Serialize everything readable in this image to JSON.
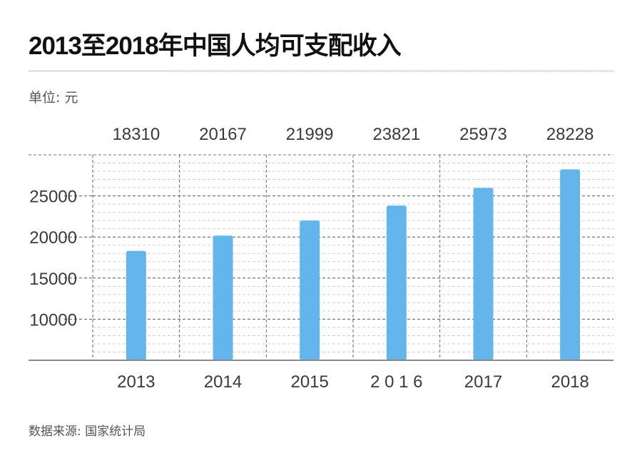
{
  "header": {
    "title": "2013至2018年中国人均可支配收入",
    "unit_label": "单位: 元"
  },
  "footer": {
    "source": "数据来源: 国家统计局"
  },
  "colors": {
    "bar": "#63b5ec",
    "major_grid": "#555555",
    "minor_grid": "#d0d0d0",
    "axis": "#888888"
  },
  "chart_data": {
    "type": "bar",
    "title": "2013至2018年中国人均可支配收入",
    "xlabel": "",
    "ylabel": "单位: 元",
    "categories": [
      "2013",
      "2014",
      "2015",
      "2 0 1 6",
      "2017",
      "2018"
    ],
    "values": [
      18310,
      20167,
      21999,
      23821,
      25973,
      28228
    ],
    "value_labels": [
      "18310",
      "20167",
      "21999",
      "23821",
      "25973",
      "28228"
    ],
    "ylim": [
      5000,
      30000
    ],
    "yticks": [
      10000,
      15000,
      20000,
      25000
    ],
    "ytick_labels": [
      "10000",
      "15000",
      "20000",
      "25000"
    ],
    "minor_grid_step": 1000,
    "grid": true,
    "legend": "none",
    "source": "数据来源: 国家统计局"
  }
}
